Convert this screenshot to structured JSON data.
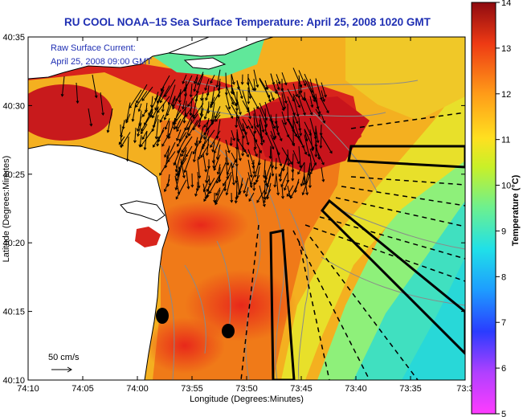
{
  "title": "RU COOL  NOAA–15  Sea Surface Temperature:  April 25, 2008 1020 GMT",
  "legend": {
    "line1": "Raw Surface Current:",
    "line2": "April 25, 2008 09:00 GMT"
  },
  "scale_label": "50 cm/s",
  "axes": {
    "xlabel": "Longitude (Degrees:Minutes)",
    "ylabel": "Latitude (Degrees:Minutes)",
    "xticks": [
      "74:10",
      "74:05",
      "74:00",
      "73:55",
      "73:50",
      "73:45",
      "73:40",
      "73:35",
      "73:3"
    ],
    "yticks": [
      "40:35",
      "40:30",
      "40:25",
      "40:20",
      "40:15",
      "40:10"
    ]
  },
  "colorbar": {
    "label": "Temperature (°C)",
    "ticks": [
      "14",
      "13",
      "12",
      "11",
      "10",
      "9",
      "8",
      "7",
      "6",
      "5"
    ]
  },
  "colors": {
    "title": "#1f2fb3",
    "legend_text": "#1f2fb3",
    "land": "#ffffff",
    "hot": "#c0141c",
    "warm": "#f07818",
    "mid": "#f0d020",
    "cool": "#30d8c0"
  }
}
